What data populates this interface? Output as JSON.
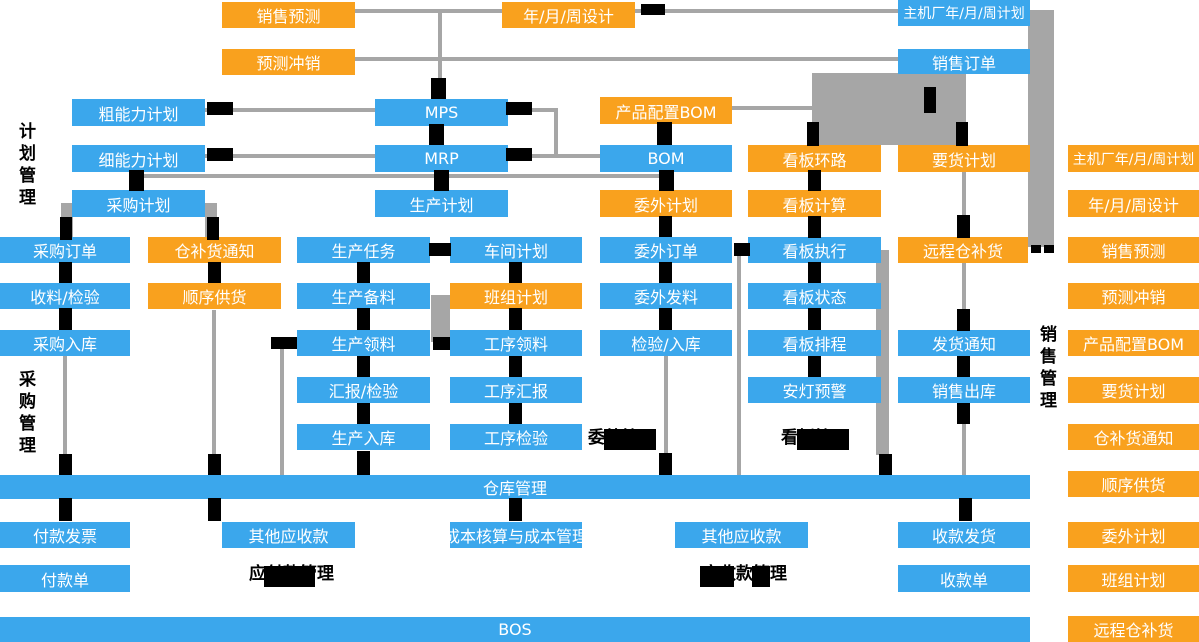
{
  "colors": {
    "node_blue": "#3BA7EC",
    "node_orange": "#F9A11E",
    "line_gray": "#A6A6A6",
    "connector_black": "#000000",
    "section_text": "#000000"
  },
  "diagram": {
    "nodes": [
      {
        "id": "sales-forecast",
        "label": "销售预测",
        "color": "orange"
      },
      {
        "id": "ymw-design",
        "label": "年/月/周设计",
        "color": "orange"
      },
      {
        "id": "oem-ymw-plan",
        "label": "主机厂年/月/周计划",
        "color": "blue"
      },
      {
        "id": "forecast-offset",
        "label": "预测冲销",
        "color": "orange"
      },
      {
        "id": "sales-order",
        "label": "销售订单",
        "color": "blue"
      },
      {
        "id": "rough-capacity-plan",
        "label": "粗能力计划",
        "color": "blue"
      },
      {
        "id": "mps",
        "label": "MPS",
        "color": "blue"
      },
      {
        "id": "product-config-bom",
        "label": "产品配置BOM",
        "color": "orange"
      },
      {
        "id": "fine-capacity-plan",
        "label": "细能力计划",
        "color": "blue"
      },
      {
        "id": "mrp",
        "label": "MRP",
        "color": "blue"
      },
      {
        "id": "bom",
        "label": "BOM",
        "color": "blue"
      },
      {
        "id": "kanban-loop",
        "label": "看板环路",
        "color": "orange"
      },
      {
        "id": "delivery-plan",
        "label": "要货计划",
        "color": "orange"
      },
      {
        "id": "purchase-plan",
        "label": "采购计划",
        "color": "blue"
      },
      {
        "id": "production-plan",
        "label": "生产计划",
        "color": "blue"
      },
      {
        "id": "outsource-plan",
        "label": "委外计划",
        "color": "orange"
      },
      {
        "id": "kanban-calc",
        "label": "看板计算",
        "color": "orange"
      },
      {
        "id": "purchase-order",
        "label": "采购订单",
        "color": "blue"
      },
      {
        "id": "warehouse-replenish-notice",
        "label": "仓补货通知",
        "color": "orange"
      },
      {
        "id": "production-task",
        "label": "生产任务",
        "color": "blue"
      },
      {
        "id": "workshop-plan",
        "label": "车间计划",
        "color": "blue"
      },
      {
        "id": "outsource-order",
        "label": "委外订单",
        "color": "blue"
      },
      {
        "id": "kanban-exec",
        "label": "看板执行",
        "color": "blue"
      },
      {
        "id": "remote-replenish",
        "label": "远程仓补货",
        "color": "orange"
      },
      {
        "id": "receive-inspect",
        "label": "收料/检验",
        "color": "blue"
      },
      {
        "id": "sequence-supply",
        "label": "顺序供货",
        "color": "orange"
      },
      {
        "id": "production-prep",
        "label": "生产备料",
        "color": "blue"
      },
      {
        "id": "team-plan",
        "label": "班组计划",
        "color": "orange"
      },
      {
        "id": "outsource-issue",
        "label": "委外发料",
        "color": "blue"
      },
      {
        "id": "kanban-status",
        "label": "看板状态",
        "color": "blue"
      },
      {
        "id": "purchase-inbound",
        "label": "采购入库",
        "color": "blue"
      },
      {
        "id": "production-issue",
        "label": "生产领料",
        "color": "blue"
      },
      {
        "id": "process-issue",
        "label": "工序领料",
        "color": "blue"
      },
      {
        "id": "inspect-inbound",
        "label": "检验/入库",
        "color": "blue"
      },
      {
        "id": "kanban-schedule",
        "label": "看板排程",
        "color": "blue"
      },
      {
        "id": "delivery-notice",
        "label": "发货通知",
        "color": "blue"
      },
      {
        "id": "report-inspect",
        "label": "汇报/检验",
        "color": "blue"
      },
      {
        "id": "process-report",
        "label": "工序汇报",
        "color": "blue"
      },
      {
        "id": "andon-warning",
        "label": "安灯预警",
        "color": "blue"
      },
      {
        "id": "sales-outbound",
        "label": "销售出库",
        "color": "blue"
      },
      {
        "id": "production-inbound",
        "label": "生产入库",
        "color": "blue"
      },
      {
        "id": "process-inspect",
        "label": "工序检验",
        "color": "blue"
      },
      {
        "id": "warehouse-mgmt-bar",
        "label": "仓库管理",
        "color": "blue"
      },
      {
        "id": "payment-invoice",
        "label": "付款发票",
        "color": "blue"
      },
      {
        "id": "other-receivable-1",
        "label": "其他应收款",
        "color": "blue"
      },
      {
        "id": "cost-accounting",
        "label": "成本核算与成本管理",
        "color": "blue"
      },
      {
        "id": "other-receivable-2",
        "label": "其他应收款",
        "color": "blue"
      },
      {
        "id": "receipt-delivery",
        "label": "收款发货",
        "color": "blue"
      },
      {
        "id": "payment-slip",
        "label": "付款单",
        "color": "blue"
      },
      {
        "id": "receipt-slip",
        "label": "收款单",
        "color": "blue"
      },
      {
        "id": "bos-bar",
        "label": "BOS",
        "color": "blue"
      },
      {
        "id": "r-oem-ymw-plan",
        "label": "主机厂年/月/周计划",
        "color": "orange"
      },
      {
        "id": "r-ymw-design",
        "label": "年/月/周设计",
        "color": "orange"
      },
      {
        "id": "r-sales-forecast",
        "label": "销售预测",
        "color": "orange"
      },
      {
        "id": "r-forecast-offset",
        "label": "预测冲销",
        "color": "orange"
      },
      {
        "id": "r-product-config-bom",
        "label": "产品配置BOM",
        "color": "orange"
      },
      {
        "id": "r-delivery-plan",
        "label": "要货计划",
        "color": "orange"
      },
      {
        "id": "r-replenish-notice",
        "label": "仓补货通知",
        "color": "orange"
      },
      {
        "id": "r-sequence-supply",
        "label": "顺序供货",
        "color": "orange"
      },
      {
        "id": "r-outsource-plan",
        "label": "委外计划",
        "color": "orange"
      },
      {
        "id": "r-team-plan",
        "label": "班组计划",
        "color": "orange"
      },
      {
        "id": "r-remote-replenish",
        "label": "远程仓补货",
        "color": "orange"
      }
    ],
    "sections": [
      {
        "id": "plan-mgmt",
        "label": "计划管理",
        "orientation": "vertical"
      },
      {
        "id": "purchase-mgmt",
        "label": "采购管理",
        "orientation": "vertical"
      },
      {
        "id": "sales-mgmt",
        "label": "销售管理",
        "orientation": "vertical"
      },
      {
        "id": "outsource-mgmt",
        "label": "委外管理",
        "orientation": "horizontal"
      },
      {
        "id": "kanban-mgmt",
        "label": "看板管理",
        "orientation": "horizontal"
      },
      {
        "id": "payable-mgmt",
        "label": "应付款管理",
        "orientation": "horizontal"
      },
      {
        "id": "receivable-mgmt",
        "label": "应收款管理",
        "orientation": "horizontal"
      }
    ]
  }
}
